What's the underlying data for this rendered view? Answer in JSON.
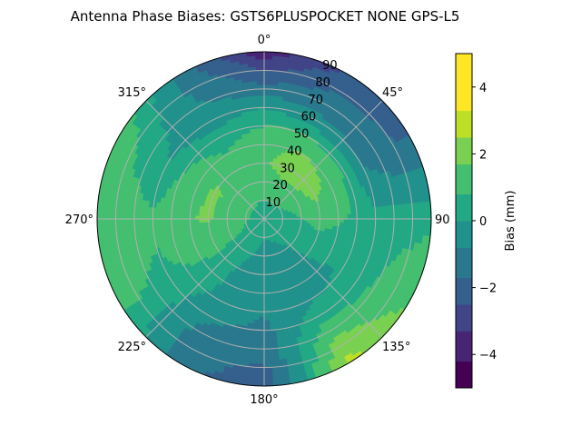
{
  "chart_data": {
    "type": "heatmap",
    "subtype": "polar-filled-contour",
    "title": "Antenna Phase Biases: GSTS6PLUSPOCKET NONE GPS-L5",
    "azimuth_tick_labels": [
      "0°",
      "45°",
      "90",
      "135°",
      "180°",
      "225°",
      "270°",
      "315°"
    ],
    "zenith_tick_labels": [
      "10",
      "20",
      "30",
      "40",
      "50",
      "60",
      "70",
      "80",
      "90"
    ],
    "zenith_range": [
      0,
      90
    ],
    "grid": true,
    "colorbar": {
      "label": "Bias (mm)",
      "range": [
        -5,
        5
      ],
      "tick_labels": [
        "−4",
        "−2",
        "0",
        "2",
        "4"
      ],
      "tick_values": [
        -4,
        -2,
        0,
        2,
        4
      ],
      "levels": [
        -5,
        -4.2,
        -3.3,
        -2.5,
        -1.7,
        -0.8,
        0,
        0.8,
        1.7,
        2.5,
        3.3,
        4.2,
        5
      ],
      "colors": [
        "#440154",
        "#482475",
        "#414487",
        "#355f8d",
        "#2a788e",
        "#21918c",
        "#22a884",
        "#44bf70",
        "#7ad151",
        "#bddf26",
        "#fde725",
        "#fde725"
      ]
    },
    "field_grid": {
      "zenith_deg": [
        0,
        15,
        30,
        45,
        60,
        75,
        90
      ],
      "azimuth_deg": [
        0,
        30,
        60,
        90,
        120,
        150,
        180,
        210,
        240,
        270,
        300,
        330
      ],
      "bias_mm": [
        [
          0.3,
          0.3,
          0.3,
          0.3,
          0.3,
          0.3,
          0.3,
          0.3,
          0.3,
          0.3,
          0.3,
          0.3
        ],
        [
          1.0,
          1.2,
          1.0,
          0.6,
          0.2,
          0.0,
          -0.1,
          0.2,
          0.8,
          1.2,
          1.4,
          1.2
        ],
        [
          1.6,
          2.2,
          2.0,
          1.2,
          0.2,
          -0.3,
          -0.4,
          0.0,
          1.0,
          1.8,
          1.8,
          1.4
        ],
        [
          1.2,
          1.6,
          1.2,
          0.8,
          0.1,
          -0.4,
          -0.6,
          -0.2,
          0.9,
          1.6,
          1.2,
          0.6
        ],
        [
          0.0,
          -0.6,
          -0.8,
          0.2,
          0.3,
          0.5,
          -1.0,
          -0.6,
          0.6,
          1.0,
          0.0,
          -0.4
        ],
        [
          -2.0,
          -1.5,
          -1.6,
          0.4,
          1.2,
          1.8,
          -1.6,
          -1.2,
          0.8,
          1.3,
          0.6,
          -0.8
        ],
        [
          -3.8,
          -2.4,
          -1.8,
          0.6,
          1.6,
          2.8,
          -2.4,
          -1.4,
          1.2,
          1.6,
          1.6,
          -1.2
        ]
      ]
    }
  }
}
